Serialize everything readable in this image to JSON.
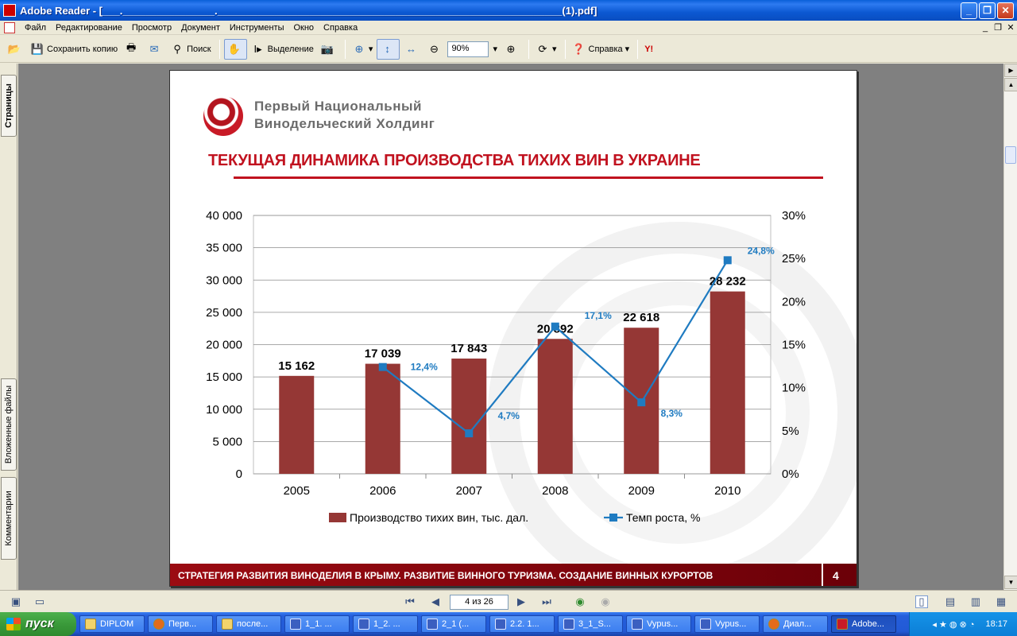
{
  "window": {
    "title": "Adobe Reader - [___.________________.____________________________________________________________(1).pdf]"
  },
  "menu": [
    "Файл",
    "Редактирование",
    "Просмотр",
    "Документ",
    "Инструменты",
    "Окно",
    "Справка"
  ],
  "toolbar": {
    "save_copy": "Сохранить копию",
    "search": "Поиск",
    "select": "Выделение",
    "zoom": "90%",
    "help": "Справка",
    "yahoo": "Y!"
  },
  "nav_tabs": {
    "pages": "Страницы",
    "attachments": "Вложенные файлы",
    "comments": "Комментарии"
  },
  "slide": {
    "company_line1": "Первый Национальный",
    "company_line2": "Винодельческий Холдинг",
    "title": "ТЕКУЩАЯ ДИНАМИКА ПРОИЗВОДСТВА ТИХИХ ВИН В УКРАИНЕ",
    "footer": "СТРАТЕГИЯ РАЗВИТИЯ ВИНОДЕЛИЯ В КРЫМУ. РАЗВИТИЕ ВИННОГО ТУРИЗМА. СОЗДАНИЕ ВИННЫХ КУРОРТОВ",
    "page_number": "4"
  },
  "chart_data": {
    "type": "bar",
    "categories": [
      "2005",
      "2006",
      "2007",
      "2008",
      "2009",
      "2010"
    ],
    "series": [
      {
        "name": "Производство тихих вин, тыс. дал.",
        "type": "bar",
        "axis": "left",
        "color": "#953735",
        "values": [
          15162,
          17039,
          17843,
          20892,
          22618,
          28232
        ],
        "labels": [
          "15 162",
          "17 039",
          "17 843",
          "20 892",
          "22 618",
          "28 232"
        ]
      },
      {
        "name": "Темп роста, %",
        "type": "line",
        "axis": "right",
        "color": "#1f7bc1",
        "values": [
          null,
          12.4,
          4.7,
          17.1,
          8.3,
          24.8
        ],
        "labels": [
          "",
          "12,4%",
          "4,7%",
          "17,1%",
          "8,3%",
          "24,8%"
        ]
      }
    ],
    "ylim_left": [
      0,
      40000
    ],
    "ylim_right": [
      0,
      30
    ],
    "yticks_left": [
      "0",
      "5 000",
      "10 000",
      "15 000",
      "20 000",
      "25 000",
      "30 000",
      "35 000",
      "40 000"
    ],
    "yticks_right": [
      "0%",
      "5%",
      "10%",
      "15%",
      "20%",
      "25%",
      "30%"
    ],
    "grid": true,
    "legend": "bottom"
  },
  "statusbar": {
    "page_indicator": "4 из 26"
  },
  "taskbar": {
    "start": "пуск",
    "tasks": [
      {
        "label": "DIPLOM",
        "icon": "folder"
      },
      {
        "label": "Перв...",
        "icon": "firefox"
      },
      {
        "label": "после...",
        "icon": "folder"
      },
      {
        "label": "1_1. ...",
        "icon": "word"
      },
      {
        "label": "1_2. ...",
        "icon": "word"
      },
      {
        "label": "2_1 (...",
        "icon": "word"
      },
      {
        "label": "2.2. 1...",
        "icon": "word"
      },
      {
        "label": "3_1_S...",
        "icon": "word"
      },
      {
        "label": "Vypus...",
        "icon": "word"
      },
      {
        "label": "Vypus...",
        "icon": "word"
      },
      {
        "label": "Диал...",
        "icon": "firefox"
      },
      {
        "label": "Adobe...",
        "icon": "pdf",
        "active": true
      }
    ],
    "clock": "18:17"
  }
}
